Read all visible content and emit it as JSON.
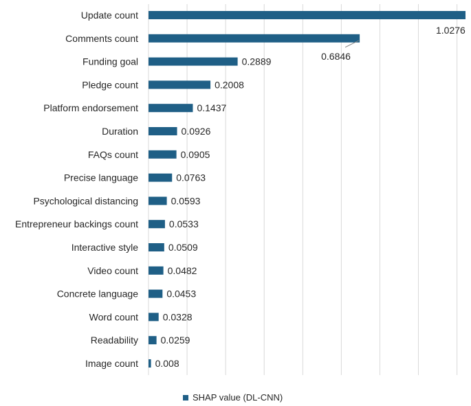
{
  "chart_data": {
    "type": "bar",
    "orientation": "horizontal",
    "title": "",
    "xlabel": "",
    "ylabel": "",
    "xlim": [
      0,
      1.0276
    ],
    "grid": true,
    "legend_position": "bottom",
    "series": [
      {
        "name": "SHAP value (DL-CNN)",
        "color": "#1f5f86",
        "categories": [
          "Update count",
          "Comments count",
          "Funding goal",
          "Pledge count",
          "Platform endorsement",
          "Duration",
          "FAQs count",
          "Precise language",
          "Psychological distancing",
          "Entrepreneur backings count",
          "Interactive style",
          "Video count",
          "Concrete language",
          "Word count",
          "Readability",
          "Image count"
        ],
        "values": [
          1.0276,
          0.6846,
          0.2889,
          0.2008,
          0.1437,
          0.0926,
          0.0905,
          0.0763,
          0.0593,
          0.0533,
          0.0509,
          0.0482,
          0.0453,
          0.0328,
          0.0259,
          0.008
        ],
        "data_labels": [
          "1.0276",
          "0.6846",
          "0.2889",
          "0.2008",
          "0.1437",
          "0.0926",
          "0.0905",
          "0.0763",
          "0.0593",
          "0.0533",
          "0.0509",
          "0.0482",
          "0.0453",
          "0.0328",
          "0.0259",
          "0.008"
        ]
      }
    ]
  },
  "legend": {
    "label": "SHAP value (DL-CNN)"
  }
}
